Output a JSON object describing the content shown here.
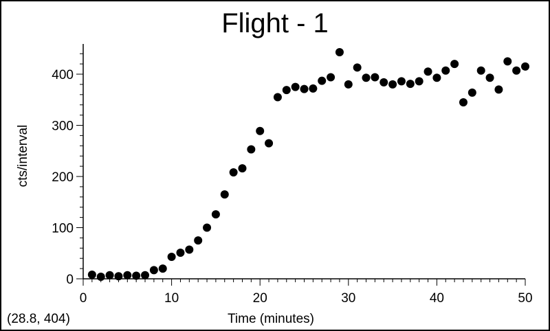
{
  "chart_data": {
    "type": "scatter",
    "title": "Flight - 1",
    "xlabel": "Time (minutes)",
    "ylabel": "cts/interval",
    "xlim": [
      0,
      50
    ],
    "ylim": [
      0,
      450
    ],
    "x_ticks": [
      0,
      10,
      20,
      30,
      40,
      50
    ],
    "y_ticks": [
      0,
      100,
      200,
      300,
      400
    ],
    "grid": false,
    "marker_color": "#000000",
    "coordinate_readout": "(28.8, 404)",
    "series": [
      {
        "x": [
          1,
          2,
          3,
          4,
          5,
          6,
          7,
          8,
          9,
          10,
          11,
          12,
          13,
          14,
          15,
          16,
          17,
          18,
          19,
          20,
          21,
          22,
          23,
          24,
          25,
          26,
          27,
          28,
          29,
          30,
          31,
          32,
          33,
          34,
          35,
          36,
          37,
          38,
          39,
          40,
          41,
          42,
          43,
          44,
          45,
          46,
          47,
          48,
          49,
          50
        ],
        "y": [
          8,
          4,
          7,
          5,
          7,
          6,
          7,
          17,
          20,
          43,
          51,
          57,
          75,
          100,
          126,
          165,
          208,
          216,
          253,
          289,
          265,
          355,
          369,
          375,
          371,
          372,
          387,
          394,
          443,
          380,
          413,
          393,
          394,
          384,
          380,
          386,
          381,
          386,
          405,
          393,
          407,
          420,
          345,
          364,
          407,
          393,
          370,
          425,
          407,
          415
        ]
      }
    ]
  }
}
